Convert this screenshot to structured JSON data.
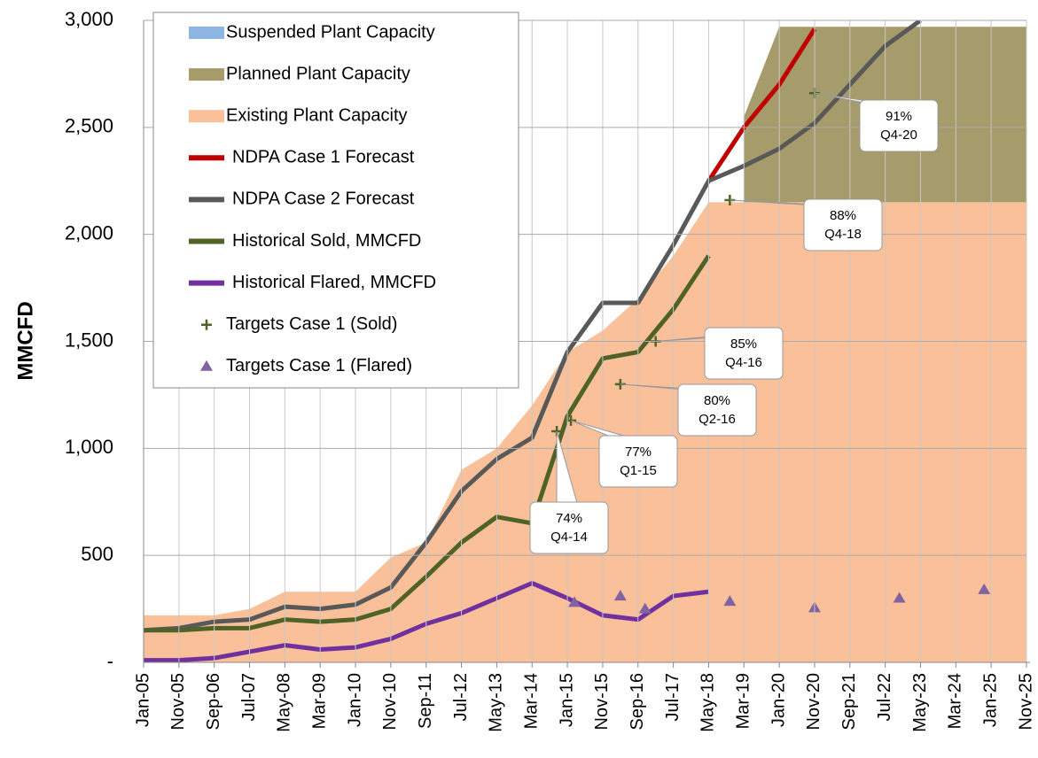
{
  "chart_data": {
    "type": "line",
    "y_label": "MMCFD",
    "categories": [
      "Jan-05",
      "Nov-05",
      "Sep-06",
      "Jul-07",
      "May-08",
      "Mar-09",
      "Jan-10",
      "Nov-10",
      "Sep-11",
      "Jul-12",
      "May-13",
      "Mar-14",
      "Jan-15",
      "Nov-15",
      "Sep-16",
      "Jul-17",
      "May-18",
      "Mar-19",
      "Jan-20",
      "Nov-20",
      "Sep-21",
      "Jul-22",
      "May-23",
      "Mar-24",
      "Jan-25",
      "Nov-25"
    ],
    "ylim": [
      0,
      3000
    ],
    "yticks": [
      {
        "value": 0,
        "label": "-"
      },
      500,
      {
        "value": 1000,
        "label": "1,000"
      },
      {
        "value": 1500,
        "label": "1,500"
      },
      {
        "value": 2000,
        "label": "2,000"
      },
      {
        "value": 2500,
        "label": "2,500"
      },
      {
        "value": 3000,
        "label": "3,000"
      }
    ],
    "grid": true,
    "series": [
      {
        "name": "Suspended Plant Capacity",
        "type": "area",
        "color": "#8eb4e3",
        "values": [
          null,
          null,
          null,
          null,
          null,
          null,
          null,
          null,
          null,
          null,
          null,
          null,
          null,
          null,
          null,
          null,
          null,
          null,
          null,
          null,
          null,
          null,
          null,
          null,
          null,
          null
        ]
      },
      {
        "name": "Planned Plant Capacity",
        "type": "area",
        "color": "#a69b6b",
        "values": [
          null,
          null,
          null,
          null,
          null,
          null,
          null,
          null,
          null,
          null,
          null,
          null,
          null,
          null,
          null,
          null,
          null,
          400,
          820,
          820,
          820,
          820,
          820,
          820,
          820,
          820
        ]
      },
      {
        "name": "Existing Plant Capacity",
        "type": "area",
        "color": "#f9c09a",
        "values": [
          220,
          220,
          220,
          250,
          330,
          330,
          330,
          490,
          560,
          900,
          1000,
          1200,
          1450,
          1550,
          1700,
          1900,
          2150,
          2150,
          2150,
          2150,
          2150,
          2150,
          2150,
          2150,
          2150,
          2150
        ]
      },
      {
        "name": "NDPA Case 1 Forecast",
        "type": "line",
        "color": "#c00000",
        "values": [
          null,
          null,
          null,
          null,
          null,
          null,
          null,
          null,
          null,
          null,
          null,
          null,
          null,
          null,
          null,
          null,
          2250,
          2500,
          2700,
          2960,
          null,
          null,
          null,
          null,
          null,
          null
        ]
      },
      {
        "name": "NDPA Case 2 Forecast",
        "type": "line",
        "color": "#595959",
        "values": [
          150,
          160,
          190,
          200,
          260,
          250,
          270,
          350,
          560,
          800,
          950,
          1050,
          1450,
          1680,
          1680,
          1950,
          2250,
          2320,
          2400,
          2520,
          2700,
          2880,
          3000,
          null,
          null,
          null
        ]
      },
      {
        "name": "Historical Sold, MMCFD",
        "type": "line",
        "color": "#4f6228",
        "values": [
          150,
          150,
          160,
          160,
          200,
          190,
          200,
          250,
          400,
          560,
          680,
          650,
          1150,
          1420,
          1450,
          1650,
          1900,
          null,
          null,
          null,
          null,
          null,
          null,
          null,
          null,
          null
        ]
      },
      {
        "name": "Historical Flared, MMCFD",
        "type": "line",
        "color": "#7030a0",
        "values": [
          10,
          10,
          20,
          50,
          80,
          60,
          70,
          110,
          180,
          230,
          300,
          370,
          300,
          220,
          200,
          310,
          330,
          null,
          null,
          null,
          null,
          null,
          null,
          null,
          null,
          null
        ]
      },
      {
        "name": "Targets Case 1 (Sold)",
        "type": "scatter",
        "marker": "plus",
        "color": "#4f6228",
        "x": [
          11.7,
          12.1,
          13.5,
          14.5,
          16.6,
          19.0
        ],
        "values": [
          1080,
          1130,
          1300,
          1500,
          2160,
          2660
        ]
      },
      {
        "name": "Targets Case 1 (Flared)",
        "type": "scatter",
        "marker": "triangle",
        "color": "#8064a2",
        "x": [
          12.2,
          13.5,
          14.2,
          16.6,
          19.0,
          21.4,
          23.8
        ],
        "values": [
          280,
          310,
          250,
          285,
          255,
          300,
          340
        ]
      }
    ],
    "annotations": [
      {
        "text": "74%",
        "period": "Q4-14"
      },
      {
        "text": "77%",
        "period": "Q1-15"
      },
      {
        "text": "80%",
        "period": "Q2-16"
      },
      {
        "text": "85%",
        "period": "Q4-16"
      },
      {
        "text": "88%",
        "period": "Q4-18"
      },
      {
        "text": "91%",
        "period": "Q4-20"
      }
    ]
  }
}
